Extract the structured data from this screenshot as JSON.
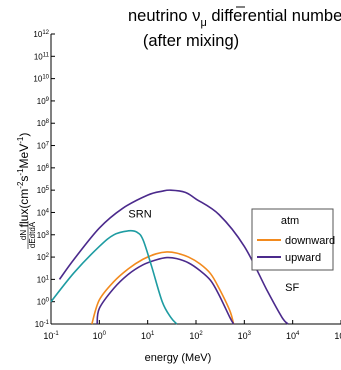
{
  "chart_data": {
    "type": "line",
    "title": {
      "prefix": "neutrino ",
      "symbol": "ν",
      "subscript": "μ",
      "suffix": " differential number flux",
      "line2": "(after mixing)"
    },
    "xlabel": "energy (MeV)",
    "ylabel": {
      "fraction_numerator": "dN",
      "fraction_denominator": "dEdtdA",
      "text_prefix": "flux(cm",
      "sup1": "-2",
      "mid1": "s",
      "sup2": "-1",
      "mid2": "MeV",
      "sup3": "-1",
      "text_suffix": ")"
    },
    "x_scale": "log",
    "y_scale": "log",
    "xlim": [
      0.1,
      100000
    ],
    "ylim": [
      0.1,
      1000000000000
    ],
    "x_ticks": [
      {
        "exp": -1,
        "label": "10",
        "sup": "-1"
      },
      {
        "exp": 0,
        "label": "10",
        "sup": "0"
      },
      {
        "exp": 1,
        "label": "10",
        "sup": "1"
      },
      {
        "exp": 2,
        "label": "10",
        "sup": "2"
      },
      {
        "exp": 3,
        "label": "10",
        "sup": "3"
      },
      {
        "exp": 4,
        "label": "10",
        "sup": "4"
      },
      {
        "exp": 5,
        "label": "10",
        "sup": "5"
      },
      {
        "exp": 6,
        "label": "10",
        "sup": ""
      }
    ],
    "y_ticks": [
      {
        "exp": -1,
        "label": "10",
        "sup": "-1"
      },
      {
        "exp": 0,
        "label": "10",
        "sup": "0"
      },
      {
        "exp": 1,
        "label": "10",
        "sup": "1"
      },
      {
        "exp": 2,
        "label": "10",
        "sup": "2"
      },
      {
        "exp": 3,
        "label": "10",
        "sup": "3"
      },
      {
        "exp": 4,
        "label": "10",
        "sup": "4"
      },
      {
        "exp": 5,
        "label": "10",
        "sup": "5"
      },
      {
        "exp": 6,
        "label": "10",
        "sup": "6"
      },
      {
        "exp": 7,
        "label": "10",
        "sup": "7"
      },
      {
        "exp": 8,
        "label": "10",
        "sup": "8"
      },
      {
        "exp": 9,
        "label": "10",
        "sup": "9"
      },
      {
        "exp": 10,
        "label": "10",
        "sup": "10"
      },
      {
        "exp": 11,
        "label": "10",
        "sup": "11"
      },
      {
        "exp": 12,
        "label": "10",
        "sup": "12"
      }
    ],
    "series": [
      {
        "name": "downward",
        "color": "#f28a1e",
        "x": [
          0.7,
          1,
          2,
          4,
          8,
          15,
          25,
          40,
          70,
          120,
          200,
          300,
          500,
          600
        ],
        "y": [
          0.1,
          1.2,
          8,
          30,
          80,
          140,
          170,
          150,
          100,
          50,
          18,
          4,
          0.4,
          0.1
        ]
      },
      {
        "name": "upward",
        "color": "#4b2a8c",
        "x": [
          0.9,
          1,
          2,
          4,
          8,
          15,
          25,
          40,
          70,
          120,
          200,
          300,
          500,
          600
        ],
        "y": [
          0.1,
          0.5,
          4,
          17,
          45,
          75,
          95,
          85,
          55,
          25,
          9,
          2,
          0.2,
          0.1
        ]
      },
      {
        "name": "",
        "color": "#4b2a8c",
        "x": [
          0.15,
          0.3,
          1,
          3,
          10,
          20,
          30,
          60,
          100,
          300,
          1000,
          3000,
          6000,
          8000
        ],
        "y": [
          10,
          80,
          2000,
          15000,
          60000,
          90000,
          100000,
          80000,
          40000,
          8000,
          300,
          3,
          0.2,
          0.1
        ]
      },
      {
        "name": "",
        "color": "#1e9ca2",
        "x": [
          0.1,
          0.3,
          1,
          2,
          4,
          6,
          8,
          12,
          20,
          30,
          40
        ],
        "y": [
          1,
          20,
          300,
          1000,
          1500,
          1300,
          600,
          40,
          1,
          0.2,
          0.1
        ]
      }
    ],
    "annotations": [
      {
        "text": "SRN",
        "x": 4,
        "y": 6000
      },
      {
        "text": "SF",
        "x": 7000,
        "y": 3
      }
    ],
    "legend": {
      "placement": "right",
      "title": "atm",
      "entries": [
        {
          "label": "downward",
          "color": "#f28a1e"
        },
        {
          "label": "upward",
          "color": "#4b2a8c"
        }
      ]
    },
    "grid": false
  }
}
